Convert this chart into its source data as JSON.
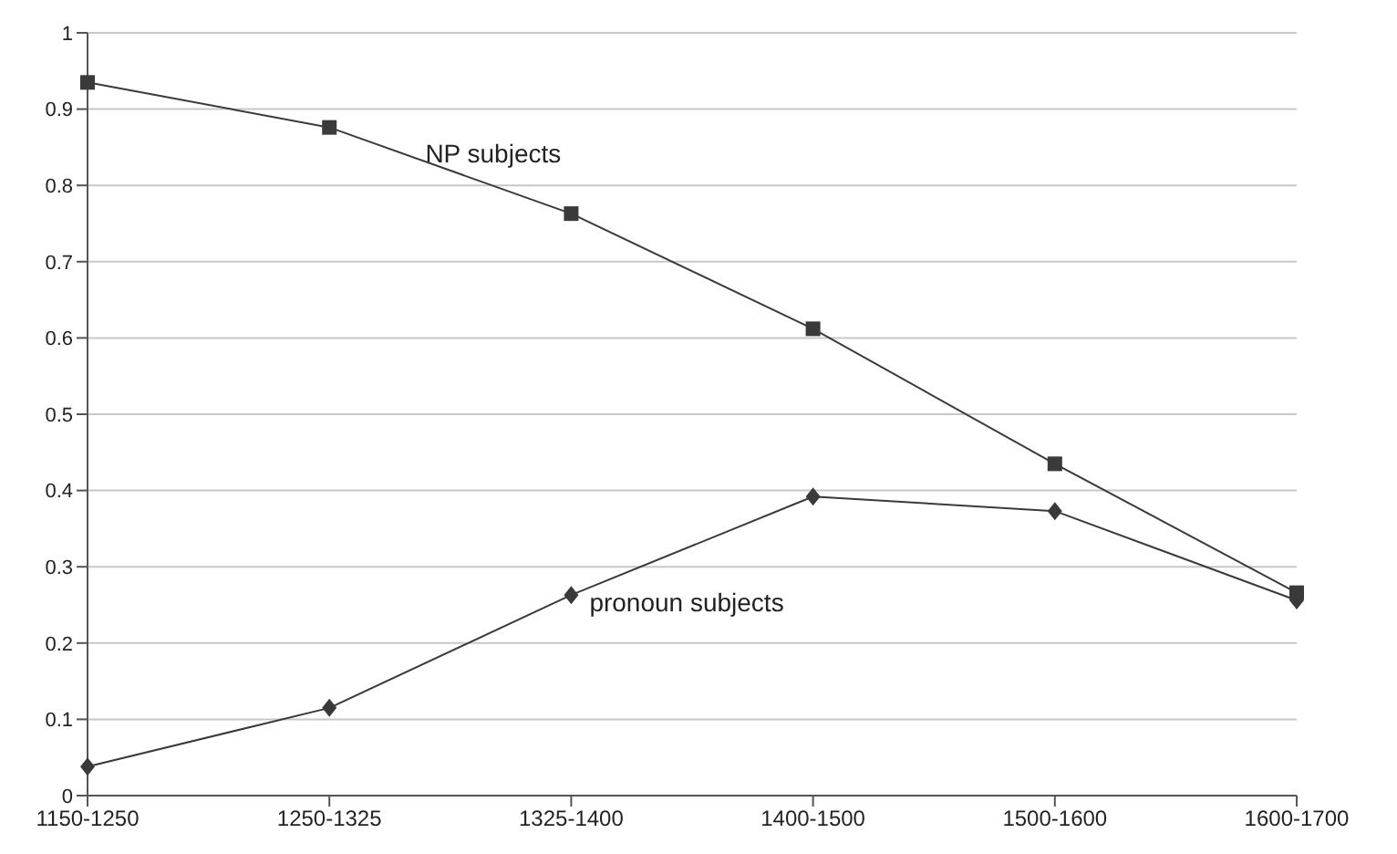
{
  "chart_data": {
    "type": "line",
    "categories": [
      "1150-1250",
      "1250-1325",
      "1325-1400",
      "1400-1500",
      "1500-1600",
      "1600-1700"
    ],
    "series": [
      {
        "name": "NP subjects",
        "color": "#3a3a3a",
        "marker": "square",
        "values": [
          0.935,
          0.876,
          0.763,
          0.612,
          0.435,
          0.266
        ]
      },
      {
        "name": "pronoun subjects",
        "color": "#3a3a3a",
        "marker": "diamond",
        "values": [
          0.038,
          0.115,
          0.263,
          0.392,
          0.373,
          0.256
        ]
      }
    ],
    "ylim": [
      0,
      1
    ],
    "yticks": [
      0,
      0.1,
      0.2,
      0.3,
      0.4,
      0.5,
      0.6,
      0.7,
      0.8,
      0.9,
      1
    ],
    "grid": "y"
  }
}
